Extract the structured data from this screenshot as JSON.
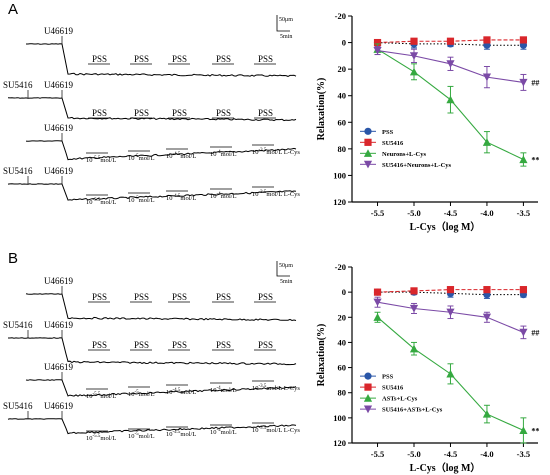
{
  "panels": [
    {
      "letter": "A",
      "traces": [
        {
          "pre": "",
          "agonist": "U46619",
          "labels": [
            "PSS",
            "PSS",
            "PSS",
            "PSS",
            "PSS"
          ]
        },
        {
          "pre": "SU5416",
          "agonist": "U46619",
          "labels": [
            "PSS",
            "PSS",
            "PSS",
            "PSS",
            "PSS"
          ]
        },
        {
          "pre": "",
          "agonist": "U46619",
          "labels": [
            "10-5.5mol/L",
            "10-5mol/L",
            "10-4.5mol/L",
            "10-4mol/L",
            "10-3.5mol/L L-Cys"
          ]
        },
        {
          "pre": "SU5416",
          "agonist": "U46619",
          "labels": [
            "10-5.5mol/L",
            "10-5mol/L",
            "10-4.5mol/L",
            "10-4mol/L",
            "10-3.5mol/L L-Cys"
          ]
        }
      ],
      "scalebar": {
        "vertical": "50μm",
        "horizontal": "5min"
      }
    },
    {
      "letter": "B",
      "traces": [
        {
          "pre": "",
          "agonist": "U46619",
          "labels": [
            "PSS",
            "PSS",
            "PSS",
            "PSS",
            "PSS"
          ]
        },
        {
          "pre": "SU5416",
          "agonist": "U46619",
          "labels": [
            "PSS",
            "PSS",
            "PSS",
            "PSS",
            "PSS"
          ]
        },
        {
          "pre": "",
          "agonist": "U46619",
          "labels": [
            "10-5.5mol/L",
            "10-5mol/L",
            "10-4.5mol/L",
            "10-4mol/L",
            "10-3.5mol/L L-Cys"
          ]
        },
        {
          "pre": "SU5416",
          "agonist": "U46619",
          "labels": [
            "10-5.5mol/L",
            "10-5mol/L",
            "10-4.5mol/L",
            "10-4mol/L",
            "10-3.5mol/L L-Cys"
          ]
        }
      ],
      "scalebar": {
        "vertical": "50μm",
        "horizontal": "5min"
      }
    }
  ],
  "chart_data": [
    {
      "type": "line",
      "title": "",
      "xlabel": "L-Cys（log M）",
      "ylabel": "Relaxation(%)",
      "x": [
        -5.5,
        -5.0,
        -4.5,
        -4.0,
        -3.5
      ],
      "xticks": [
        "-5.5",
        "-5.0",
        "-4.5",
        "-4.0",
        "-3.5"
      ],
      "xlim": [
        -5.85,
        -3.3
      ],
      "ylim": [
        -20,
        120
      ],
      "yticks": [
        -20,
        0,
        20,
        40,
        60,
        80,
        100,
        120
      ],
      "y_inverted": true,
      "legend_position": "bottom-left",
      "series": [
        {
          "name": "PSS",
          "color": "#2a56a8",
          "marker": "circle",
          "line": "dotted",
          "values": [
            0,
            1,
            1,
            2,
            2
          ],
          "errors": [
            2,
            3,
            2,
            3,
            3
          ],
          "label": ""
        },
        {
          "name": "SU5416",
          "color": "#d9262b",
          "marker": "square",
          "line": "dashed",
          "values": [
            0,
            -1,
            -1,
            -2,
            -2
          ],
          "errors": [
            2,
            2,
            2,
            2,
            2
          ],
          "label": ""
        },
        {
          "name": "Neurons+L-Cys",
          "color": "#35a940",
          "marker": "triangle-up",
          "line": "solid",
          "values": [
            5,
            22,
            43,
            75,
            88
          ],
          "errors": [
            4,
            6,
            10,
            8,
            5
          ],
          "label": "**"
        },
        {
          "name": "SU5416+Neurons+L-Cys",
          "color": "#7b4aa6",
          "marker": "triangle-down",
          "line": "solid",
          "values": [
            6,
            10,
            16,
            26,
            30
          ],
          "errors": [
            3,
            5,
            5,
            8,
            6
          ],
          "label": "##"
        }
      ]
    },
    {
      "type": "line",
      "title": "",
      "xlabel": "L-Cys（log M）",
      "ylabel": "Relaxation(%)",
      "x": [
        -5.5,
        -5.0,
        -4.5,
        -4.0,
        -3.5
      ],
      "xticks": [
        "-5.5",
        "-5.0",
        "-4.5",
        "-4.0",
        "-3.5"
      ],
      "xlim": [
        -5.85,
        -3.3
      ],
      "ylim": [
        -20,
        120
      ],
      "yticks": [
        -20,
        0,
        20,
        40,
        60,
        80,
        100,
        120
      ],
      "y_inverted": true,
      "legend_position": "bottom-left",
      "series": [
        {
          "name": "PSS",
          "color": "#2a56a8",
          "marker": "circle",
          "line": "dotted",
          "values": [
            0,
            0,
            1,
            2,
            2
          ],
          "errors": [
            2,
            2,
            3,
            3,
            2
          ],
          "label": ""
        },
        {
          "name": "SU5416",
          "color": "#d9262b",
          "marker": "square",
          "line": "dashed",
          "values": [
            0,
            -1,
            -2,
            -2,
            -2
          ],
          "errors": [
            2,
            2,
            2,
            2,
            2
          ],
          "label": ""
        },
        {
          "name": "ASTs+L-Cys",
          "color": "#35a940",
          "marker": "triangle-up",
          "line": "solid",
          "values": [
            20,
            45,
            65,
            97,
            110
          ],
          "errors": [
            4,
            5,
            8,
            7,
            10
          ],
          "label": "**"
        },
        {
          "name": "SU5416+ASTs+L-Cys",
          "color": "#7b4aa6",
          "marker": "triangle-down",
          "line": "solid",
          "values": [
            8,
            13,
            16,
            20,
            32
          ],
          "errors": [
            4,
            4,
            5,
            4,
            5
          ],
          "label": "##"
        }
      ]
    }
  ]
}
